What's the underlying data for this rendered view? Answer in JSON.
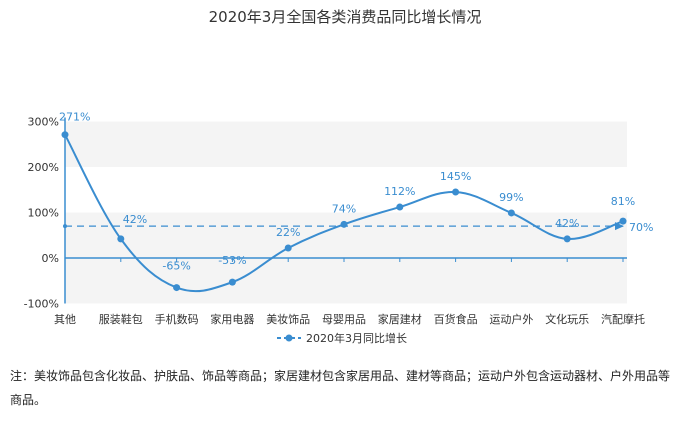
{
  "chart_data": {
    "type": "line",
    "title": "2020年3月全国各类消费品同比增长情况",
    "categories": [
      "其他",
      "服装鞋包",
      "手机数码",
      "家用电器",
      "美妆饰品",
      "母婴用品",
      "家居建材",
      "百货食品",
      "运动户外",
      "文化玩乐",
      "汽配摩托"
    ],
    "series": [
      {
        "name": "2020年3月同比增长",
        "values": [
          271,
          42,
          -65,
          -53,
          22,
          74,
          112,
          145,
          99,
          42,
          81
        ]
      }
    ],
    "data_labels": [
      "271%",
      "42%",
      "-65%",
      "-53%",
      "22%",
      "74%",
      "112%",
      "145%",
      "99%",
      "42%",
      "81%"
    ],
    "average_line": {
      "value": 70,
      "label": "70%"
    },
    "y_ticks": [
      "300%",
      "200%",
      "100%",
      "0%",
      "-100%"
    ],
    "ylim": [
      -100,
      300
    ],
    "grid": true,
    "legend_position": "bottom",
    "colors": {
      "line": "#3a8dd0",
      "band": "#f4f4f4",
      "axis": "#3a8dd0"
    }
  },
  "note": "注：美妆饰品包含化妆品、护肤品、饰品等商品；家居建材包含家居用品、建材等商品；运动户外包含运动器材、户外用品等商品。"
}
